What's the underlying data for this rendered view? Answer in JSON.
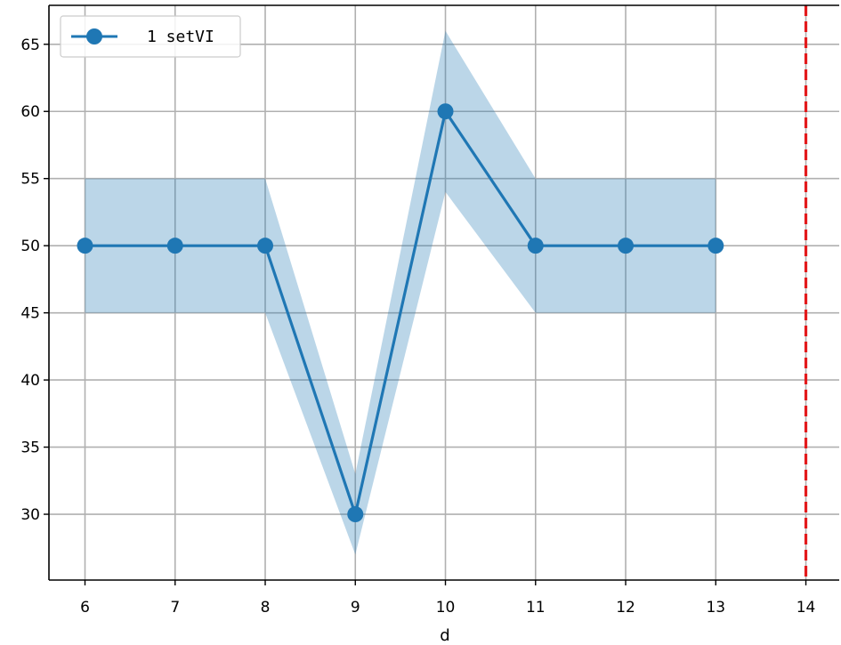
{
  "chart_data": {
    "type": "line",
    "xlabel": "d",
    "ylabel": "",
    "title": "",
    "x": [
      6,
      7,
      8,
      9,
      10,
      11,
      12,
      13
    ],
    "series": [
      {
        "name": "1 setVI",
        "color": "#1f77b4",
        "marker": "circle",
        "values": [
          50,
          50,
          50,
          30,
          60,
          50,
          50,
          50
        ],
        "band_lower": [
          45,
          45,
          45,
          27,
          54,
          45,
          45,
          45
        ],
        "band_upper": [
          55,
          55,
          55,
          33,
          66,
          55,
          55,
          55
        ],
        "band_color": "#1f77b4"
      }
    ],
    "vline": {
      "x": 14,
      "color": "#e31a1c",
      "style": "dashed"
    },
    "xlim": [
      5.6,
      14.37
    ],
    "ylim": [
      25.1,
      67.9
    ],
    "xticks": [
      6,
      7,
      8,
      9,
      10,
      11,
      12,
      13,
      14
    ],
    "yticks": [
      30,
      35,
      40,
      45,
      50,
      55,
      60,
      65
    ],
    "grid": true,
    "legend_position": "top-left"
  }
}
